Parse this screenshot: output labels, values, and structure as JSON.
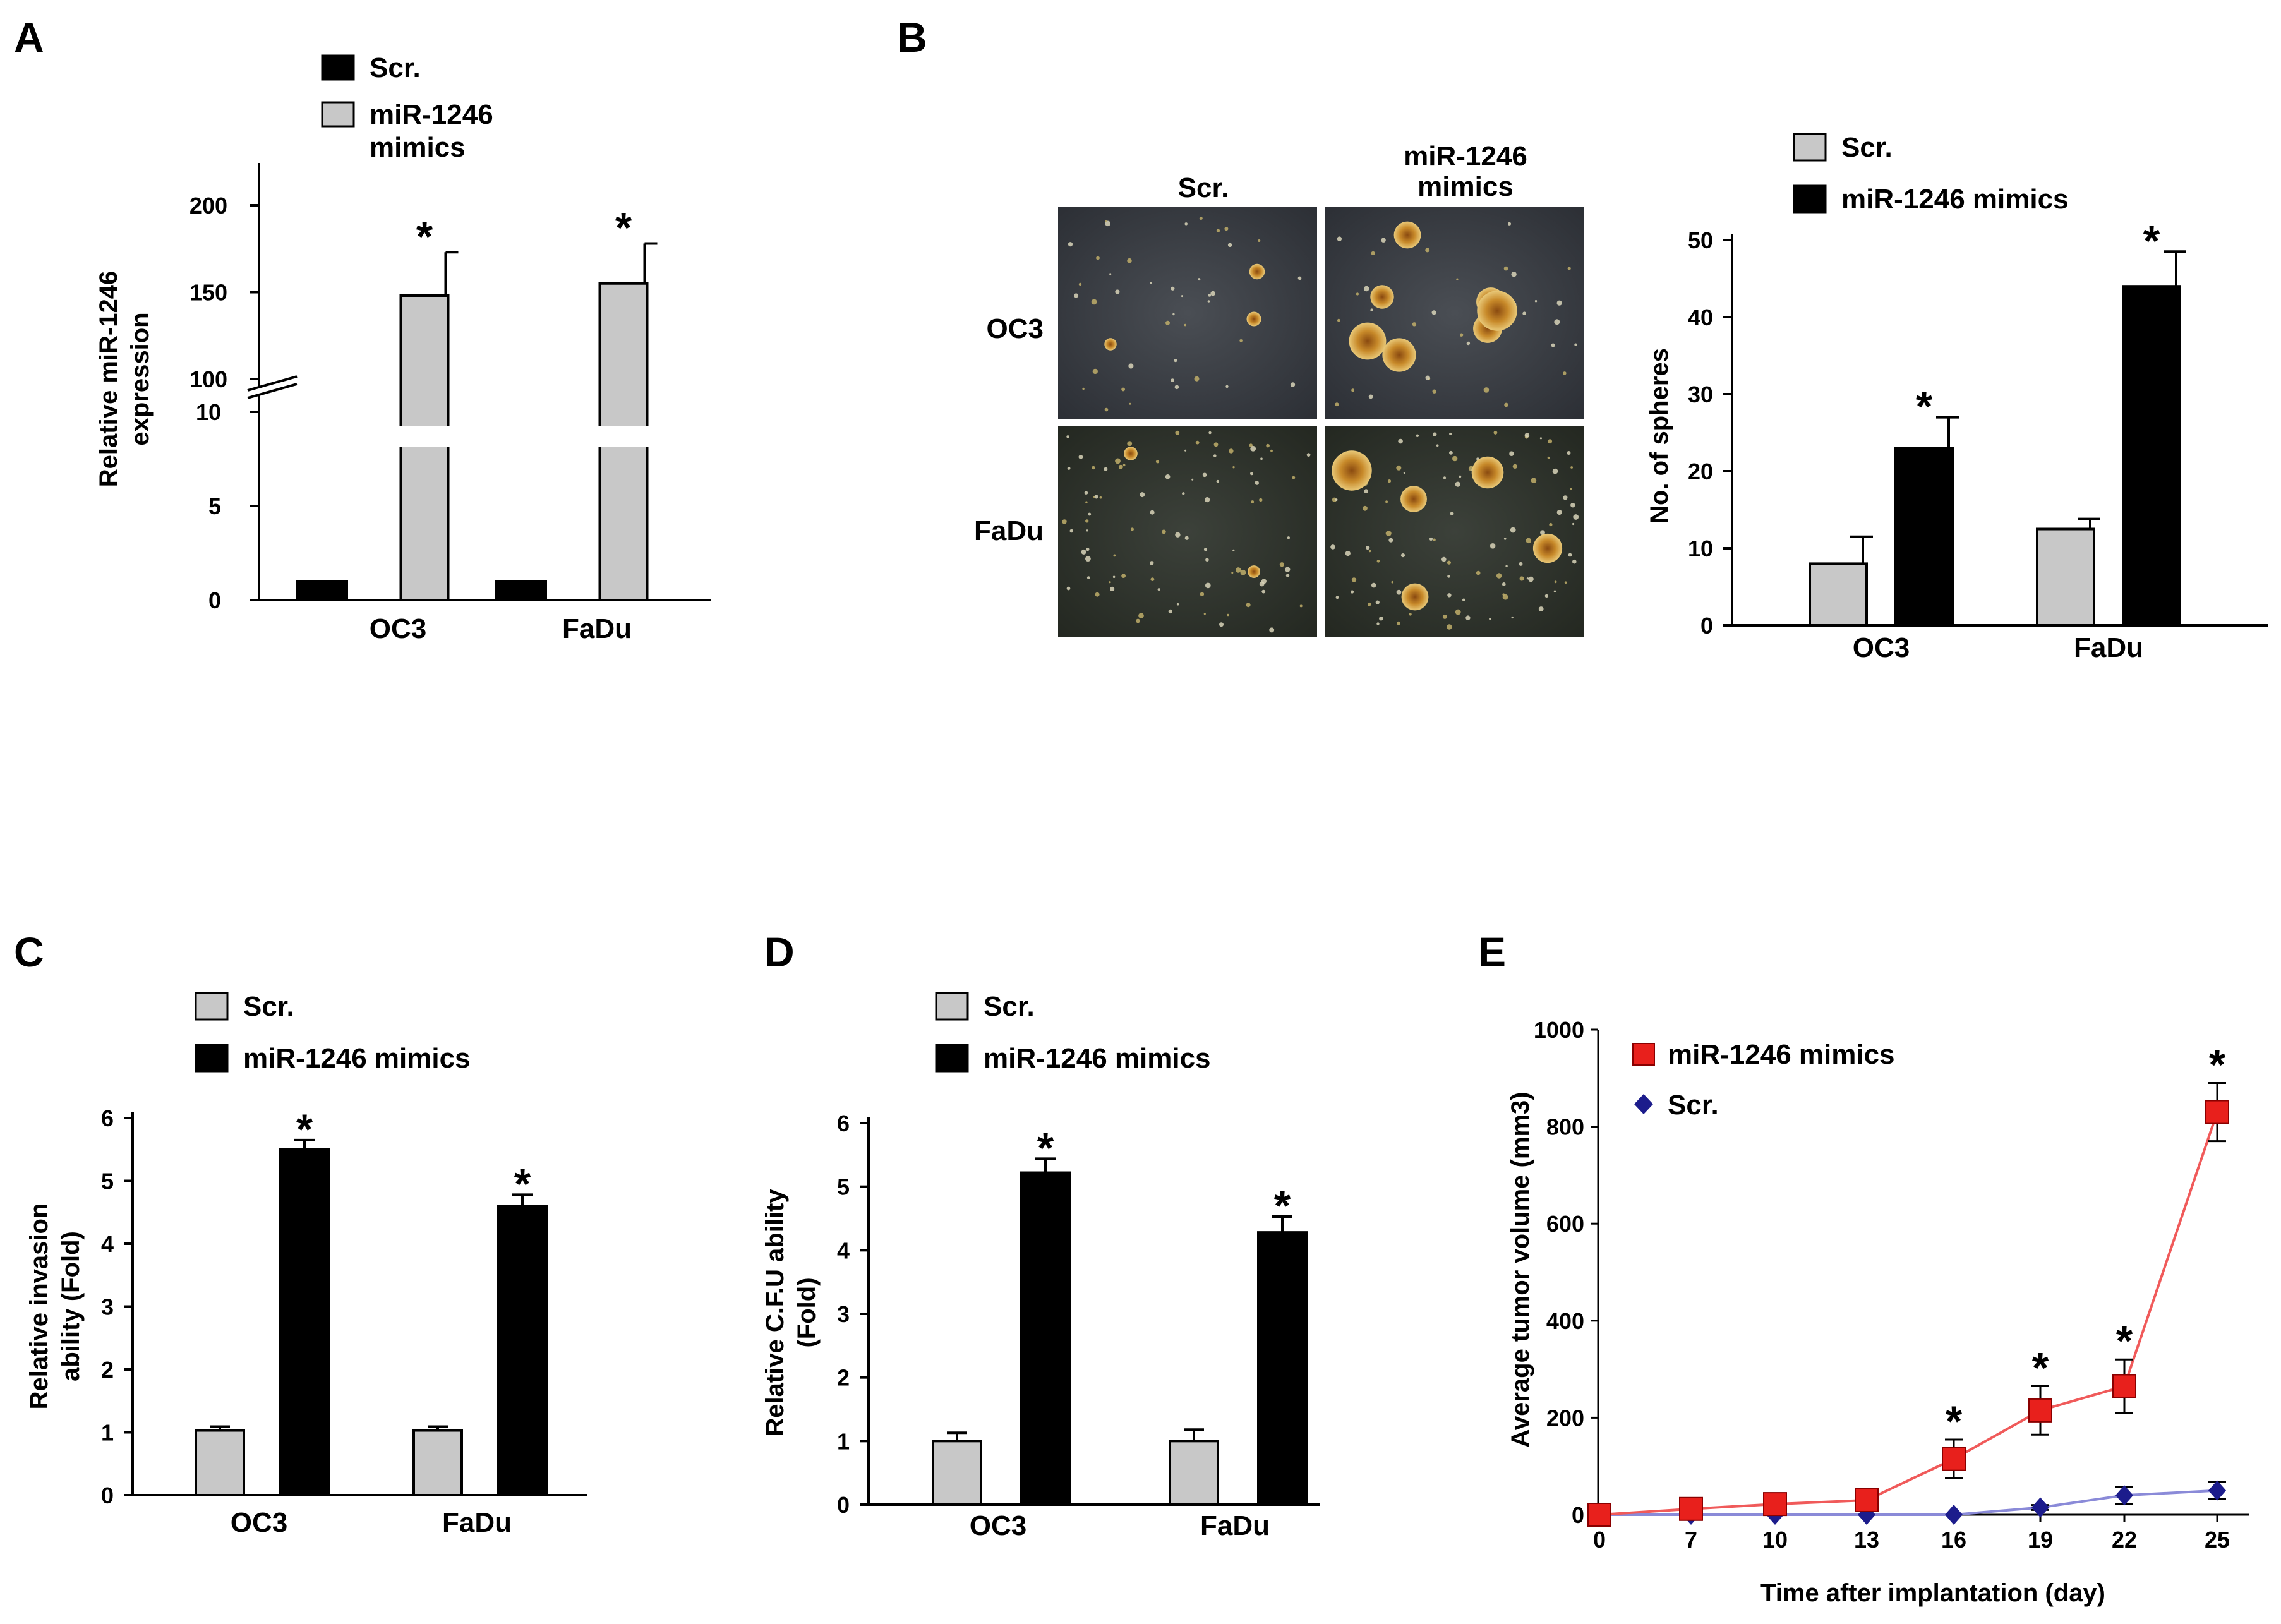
{
  "panels": {
    "A": {
      "letter": "A"
    },
    "B": {
      "letter": "B"
    },
    "C": {
      "letter": "C"
    },
    "D": {
      "letter": "D"
    },
    "E": {
      "letter": "E"
    }
  },
  "micrograph": {
    "col_labels": [
      "Scr.",
      "miR-1246\nmimics"
    ],
    "row_labels": [
      "OC3",
      "FaDu"
    ]
  },
  "colors": {
    "black": "#000000",
    "gray": "#c8c8c8",
    "red": "#e8201c",
    "red_line": "#f05a5a",
    "blue": "#1c1c8c",
    "blue_line": "#8a8ad8"
  },
  "chart_data": [
    {
      "panel": "A",
      "type": "bar",
      "categories": [
        "OC3",
        "FaDu"
      ],
      "series": [
        {
          "name": "Scr.",
          "values": [
            1,
            1
          ],
          "errors": [
            0,
            0
          ],
          "color": "black"
        },
        {
          "name": "miR-1246\nmimics",
          "values": [
            148,
            155
          ],
          "errors": [
            25,
            23
          ],
          "color": "gray"
        }
      ],
      "stars": [
        false,
        false,
        true,
        true
      ],
      "ylabel": "Relative miR-1246\nexpression",
      "axis_break": {
        "lower": [
          0,
          10
        ],
        "upper": [
          100,
          200
        ]
      },
      "lower_ticks": [
        0,
        5,
        10
      ],
      "upper_ticks": [
        100,
        150,
        200
      ],
      "star_symbol": "*"
    },
    {
      "panel": "B",
      "type": "bar",
      "categories": [
        "OC3",
        "FaDu"
      ],
      "series": [
        {
          "name": "Scr.",
          "values": [
            8,
            12.5
          ],
          "errors": [
            3.5,
            1.3
          ],
          "color": "gray"
        },
        {
          "name": "miR-1246 mimics",
          "values": [
            23,
            44
          ],
          "errors": [
            4,
            4.5
          ],
          "color": "black"
        }
      ],
      "stars": [
        false,
        false,
        true,
        true
      ],
      "ylabel": "No. of spheres",
      "ylim": [
        0,
        50
      ],
      "yticks": [
        0,
        10,
        20,
        30,
        40,
        50
      ],
      "star_symbol": "*"
    },
    {
      "panel": "C",
      "type": "bar",
      "categories": [
        "OC3",
        "FaDu"
      ],
      "series": [
        {
          "name": "Scr.",
          "values": [
            1.03,
            1.03
          ],
          "errors": [
            0.06,
            0.06
          ],
          "color": "gray"
        },
        {
          "name": "miR-1246 mimics",
          "values": [
            5.5,
            4.6
          ],
          "errors": [
            0.15,
            0.18
          ],
          "color": "black"
        }
      ],
      "stars": [
        false,
        false,
        true,
        true
      ],
      "ylabel": "Relative invasion\nability (Fold)",
      "ylim": [
        0,
        6
      ],
      "yticks": [
        0,
        1,
        2,
        3,
        4,
        5,
        6
      ],
      "star_symbol": "*"
    },
    {
      "panel": "D",
      "type": "bar",
      "categories": [
        "OC3",
        "FaDu"
      ],
      "series": [
        {
          "name": "Scr.",
          "values": [
            1.0,
            1.0
          ],
          "errors": [
            0.13,
            0.18
          ],
          "color": "gray"
        },
        {
          "name": "miR-1246 mimics",
          "values": [
            5.22,
            4.28
          ],
          "errors": [
            0.22,
            0.25
          ],
          "color": "black"
        }
      ],
      "stars": [
        false,
        false,
        true,
        true
      ],
      "ylabel": "Relative C.F.U  ability\n(Fold)",
      "ylim": [
        0,
        6
      ],
      "yticks": [
        0,
        1,
        2,
        3,
        4,
        5,
        6
      ],
      "star_symbol": "*"
    },
    {
      "panel": "E",
      "type": "line",
      "x": [
        0,
        7,
        10,
        13,
        16,
        19,
        22,
        25
      ],
      "series": [
        {
          "name": "miR-1246 mimics",
          "values": [
            0,
            12,
            22,
            30,
            115,
            215,
            265,
            830
          ],
          "errors": [
            0,
            6,
            8,
            8,
            40,
            50,
            55,
            60
          ],
          "marker": "square",
          "color": "red"
        },
        {
          "name": "Scr.",
          "values": [
            0,
            0,
            0,
            0,
            0,
            15,
            40,
            50
          ],
          "errors": [
            0,
            0,
            0,
            0,
            0,
            5,
            18,
            18
          ],
          "marker": "diamond",
          "color": "blue"
        }
      ],
      "stars_at_x": [
        16,
        19,
        22,
        25
      ],
      "xlabel": "Time after implantation (day)",
      "ylabel": "Average tumor volume (mm3)",
      "ylim": [
        0,
        1000
      ],
      "yticks": [
        0,
        200,
        400,
        600,
        800,
        1000
      ],
      "star_symbol": "*"
    }
  ]
}
